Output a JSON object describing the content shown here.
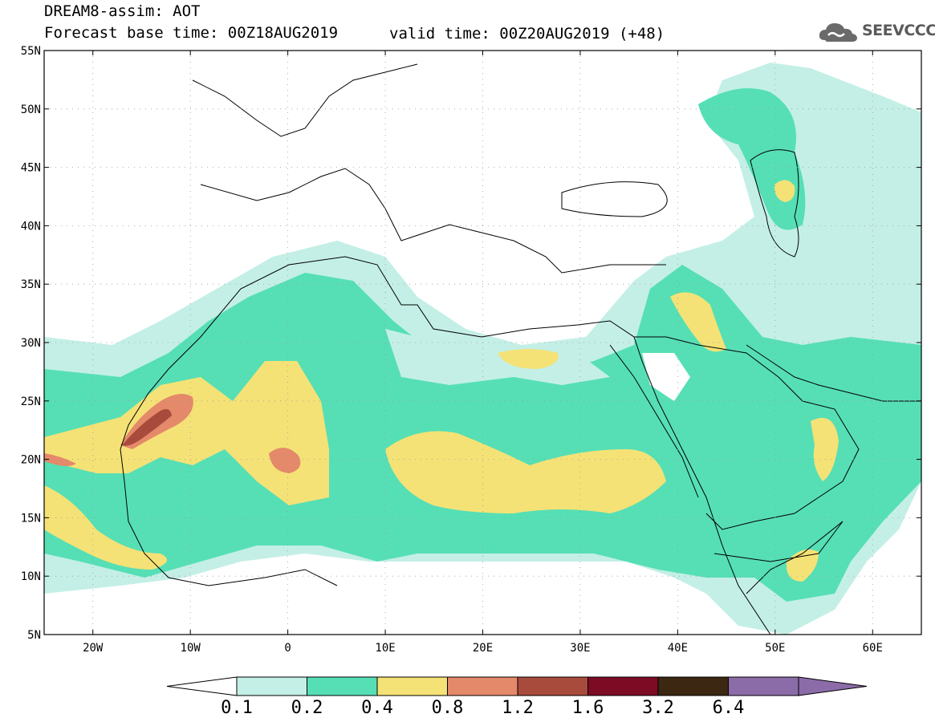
{
  "header": {
    "title": "DREAM8-assim: AOT",
    "forecast_base": "Forecast base time: 00Z18AUG2019",
    "valid_time": "valid time: 00Z20AUG2019 (+48)",
    "logo_text": "SEEVCCC"
  },
  "map": {
    "lon_range": [
      -25,
      65
    ],
    "lat_range": [
      5,
      55
    ],
    "lat_labels": [
      "55N",
      "50N",
      "45N",
      "40N",
      "35N",
      "30N",
      "25N",
      "20N",
      "15N",
      "10N",
      "5N"
    ],
    "lon_labels": [
      "20W",
      "10W",
      "0",
      "10E",
      "20E",
      "30E",
      "40E",
      "50E",
      "60E"
    ],
    "grid": "dotted"
  },
  "colorbar": {
    "labels": [
      "0.1",
      "0.2",
      "0.4",
      "0.8",
      "1.2",
      "1.6",
      "3.2",
      "6.4"
    ],
    "colors": [
      "#ffffff",
      "#c3efe6",
      "#56dfb4",
      "#f5e276",
      "#e4896a",
      "#a84a3c",
      "#7e0b24",
      "#3c2812",
      "#8c6ca8"
    ]
  }
}
